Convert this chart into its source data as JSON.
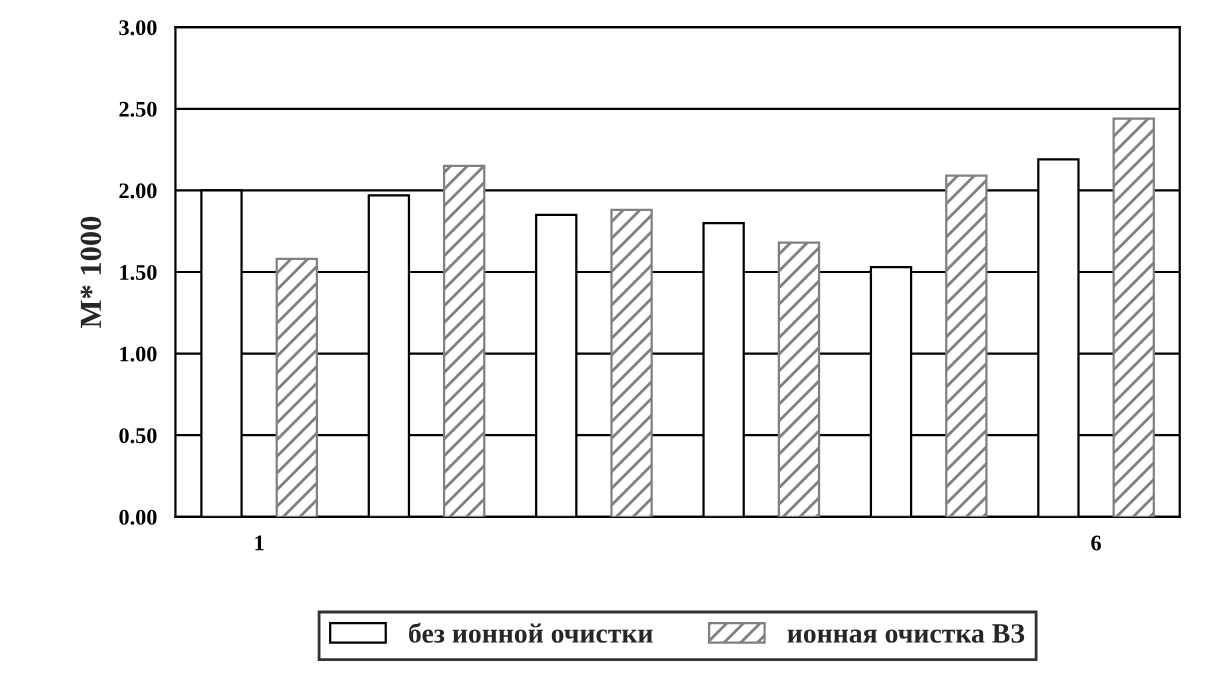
{
  "chart_data": {
    "type": "bar",
    "ylabel": "M* 1000",
    "categories": [
      "1",
      null,
      null,
      null,
      null,
      "6"
    ],
    "series": [
      {
        "name": "без ионной очистки",
        "color": "#ffffff",
        "values": [
          2.0,
          1.97,
          1.85,
          1.8,
          1.53,
          2.19
        ]
      },
      {
        "name": "ионная очистка ВЗ",
        "color": "#808080",
        "values": [
          1.58,
          2.15,
          1.88,
          1.68,
          2.09,
          2.44
        ]
      }
    ],
    "ylim": [
      0,
      3
    ],
    "yticks": [
      {
        "value": 0,
        "label": "0.00"
      },
      {
        "value": 0.5,
        "label": "0.50"
      },
      {
        "value": 1,
        "label": "1.00"
      },
      {
        "value": 1.5,
        "label": "1.50"
      },
      {
        "value": 2,
        "label": "2.00"
      },
      {
        "value": 2.5,
        "label": "2.50"
      },
      {
        "value": 3,
        "label": "3.00"
      }
    ],
    "grid": "y",
    "legend": "bottom"
  }
}
